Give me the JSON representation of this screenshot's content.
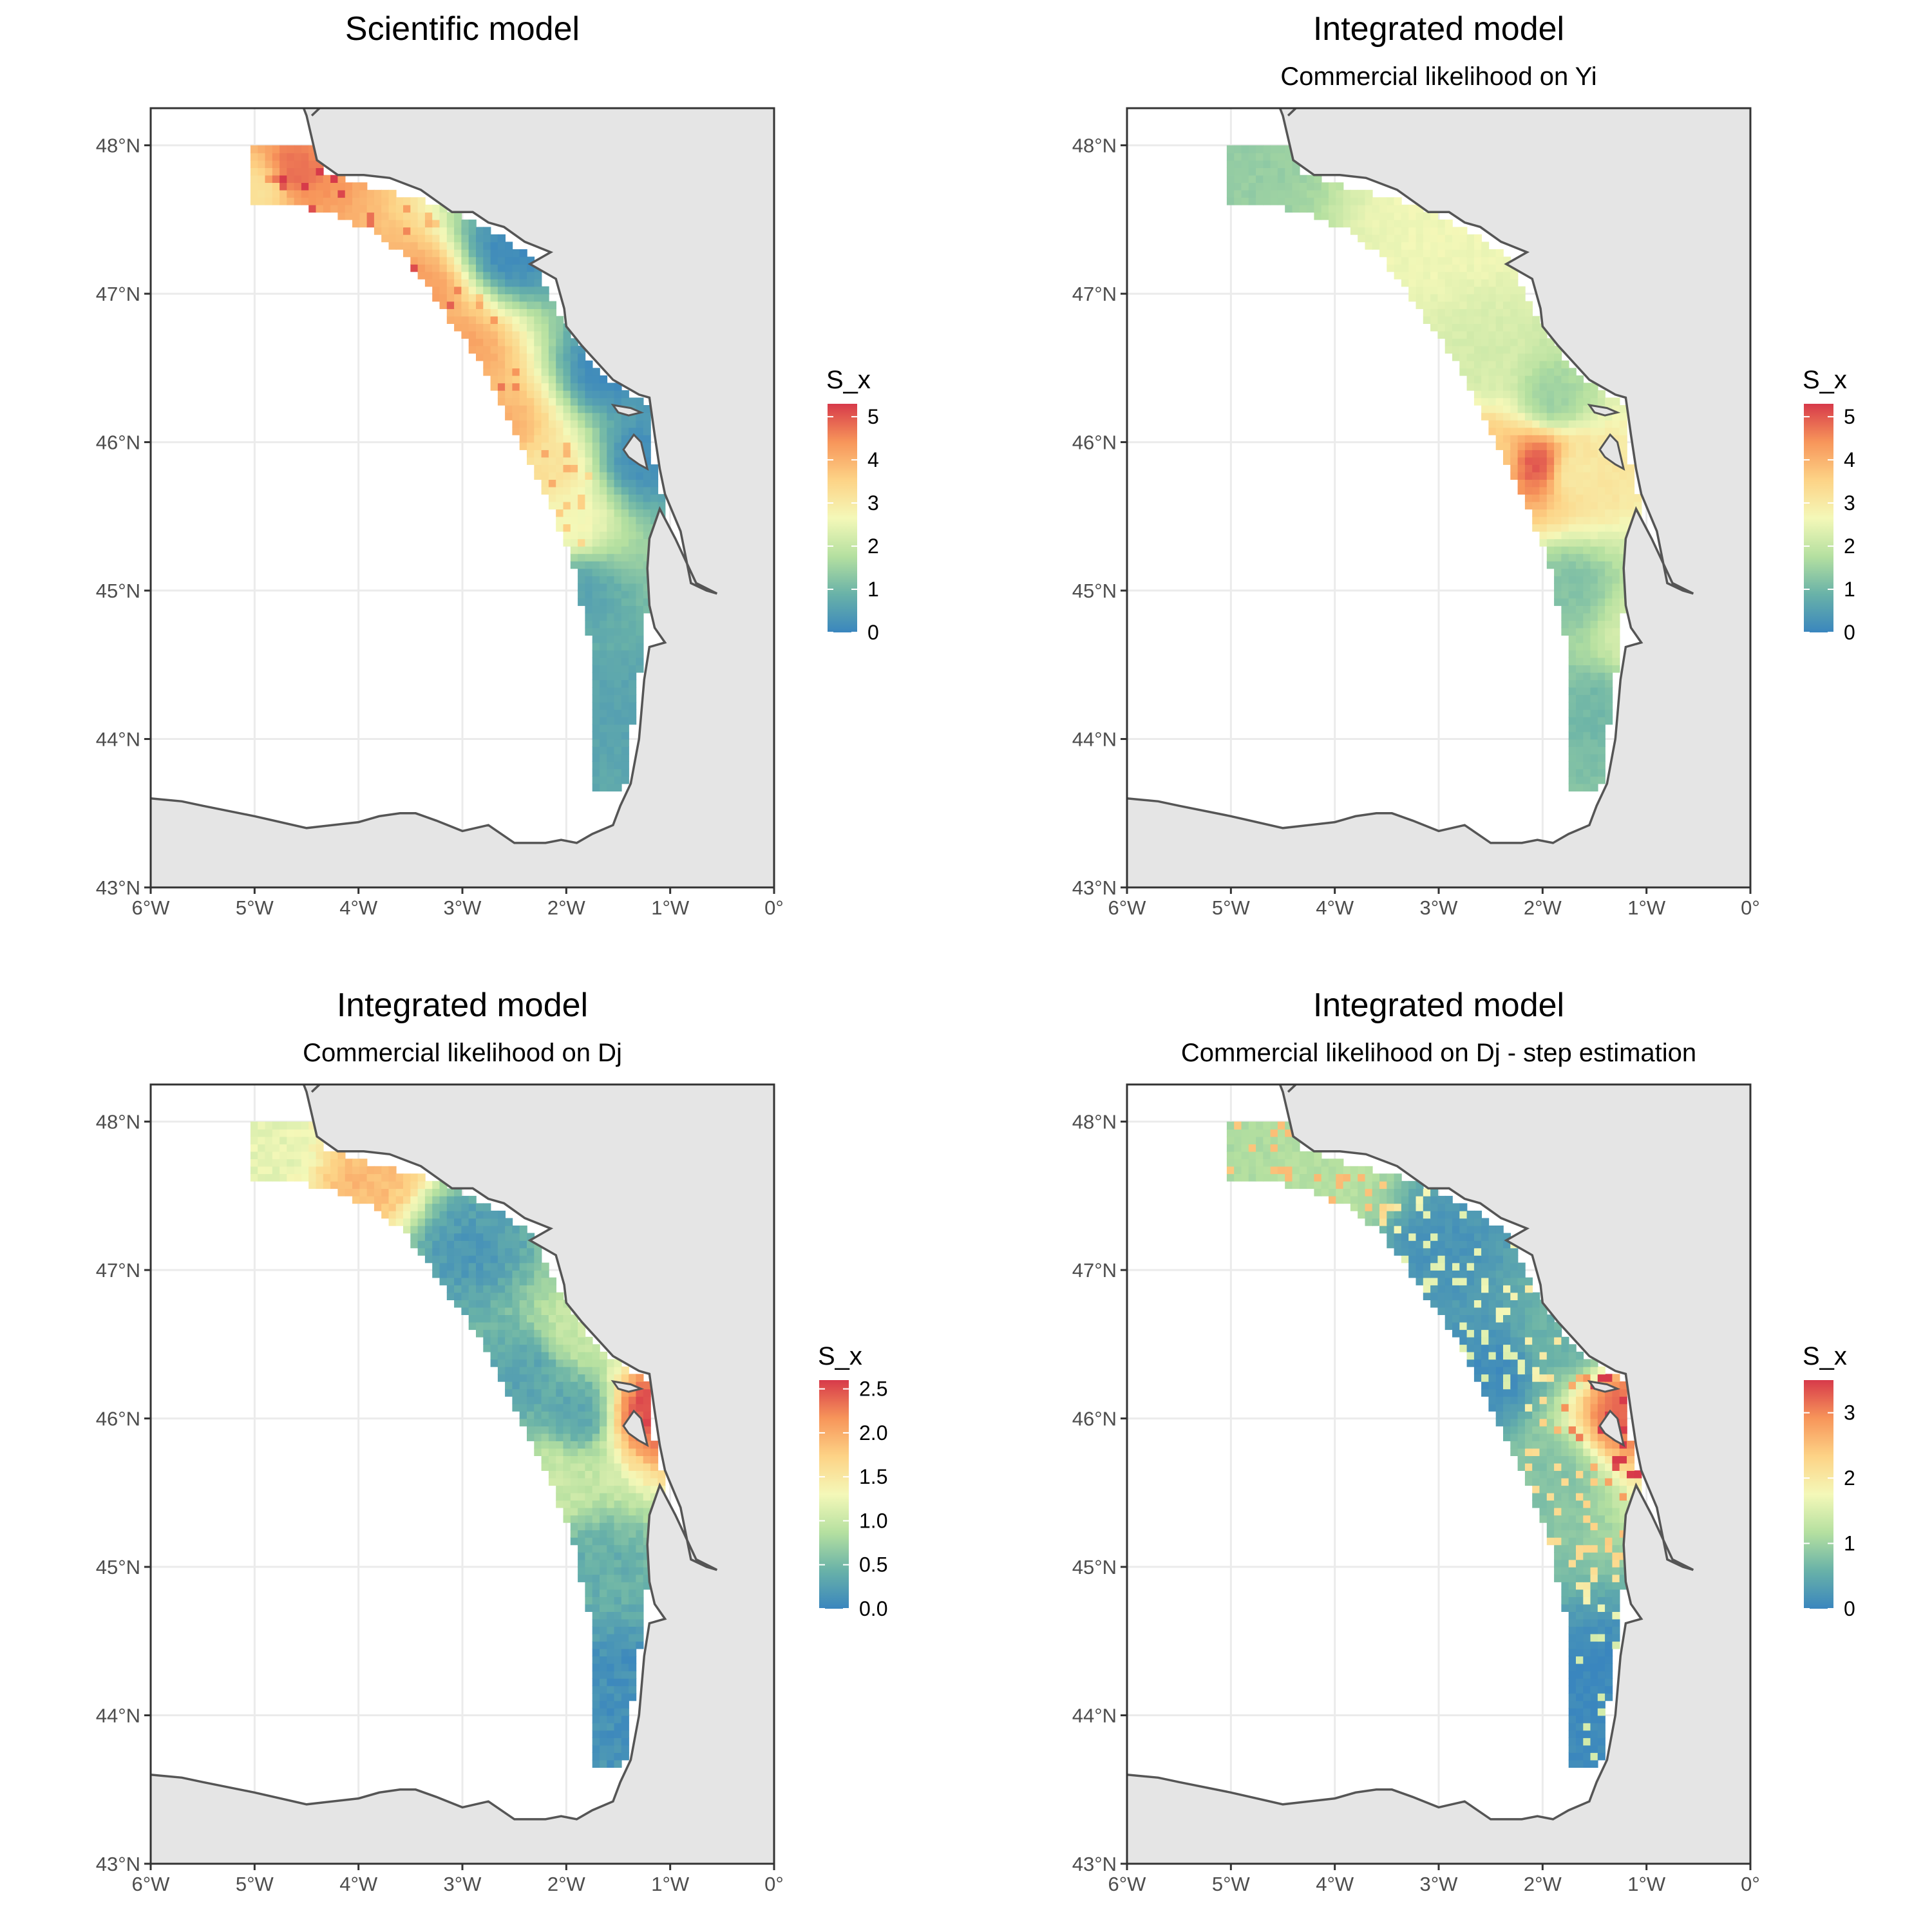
{
  "figure": {
    "panels": [
      {
        "title": "Scientific model",
        "subtitle": "",
        "legend": {
          "title": "S_x",
          "ticks": [
            "5",
            "4",
            "3",
            "2",
            "1",
            "0"
          ],
          "tick_values": [
            5,
            4,
            3,
            2,
            1,
            0
          ],
          "max": 5.3
        }
      },
      {
        "title": "Integrated model",
        "subtitle": "Commercial likelihood on Yi",
        "legend": {
          "title": "S_x",
          "ticks": [
            "5",
            "4",
            "3",
            "2",
            "1",
            "0"
          ],
          "tick_values": [
            5,
            4,
            3,
            2,
            1,
            0
          ],
          "max": 5.3
        }
      },
      {
        "title": "Integrated model",
        "subtitle": "Commercial likelihood on Dj",
        "legend": {
          "title": "S_x",
          "ticks": [
            "2.5",
            "2.0",
            "1.5",
            "1.0",
            "0.5",
            "0.0"
          ],
          "tick_values": [
            2.5,
            2.0,
            1.5,
            1.0,
            0.5,
            0.0
          ],
          "max": 2.6
        }
      },
      {
        "title": "Integrated model",
        "subtitle": "Commercial likelihood on Dj - step estimation",
        "legend": {
          "title": "S_x",
          "ticks": [
            "3",
            "2",
            "1",
            "0"
          ],
          "tick_values": [
            3,
            2,
            1,
            0
          ],
          "max": 3.5
        }
      }
    ],
    "x_ticks": [
      "6°W",
      "5°W",
      "4°W",
      "3°W",
      "2°W",
      "1°W",
      "0°"
    ],
    "x_tick_values": [
      -6,
      -5,
      -4,
      -3,
      -2,
      -1,
      0
    ],
    "y_ticks": [
      "48°N",
      "47°N",
      "46°N",
      "45°N",
      "44°N",
      "43°N"
    ],
    "y_tick_values": [
      48,
      47,
      46,
      45,
      44,
      43
    ],
    "colors": {
      "land": "#e5e5e5",
      "coast": "#555555",
      "grid": "#ebebeb",
      "scale": [
        "#3a86be",
        "#69b2a8",
        "#b5e0a0",
        "#f4f8b8",
        "#fdd386",
        "#f7955a",
        "#d73a4a"
      ]
    }
  },
  "chart_data": [
    {
      "type": "heatmap",
      "title": "Scientific model",
      "xlim": [
        -6,
        0
      ],
      "ylim": [
        43,
        48.25
      ],
      "color_range": [
        0,
        5.3
      ],
      "pattern": [
        {
          "lon": -4.65,
          "lat": 47.82,
          "value": 4.8
        },
        {
          "lon": -4.9,
          "lat": 47.72,
          "value": 3.2
        },
        {
          "lon": -3.45,
          "lat": 47.0,
          "value": 4.3
        },
        {
          "lon": -3.0,
          "lat": 46.6,
          "value": 4.2
        },
        {
          "lon": -2.6,
          "lat": 46.1,
          "value": 4.0
        },
        {
          "lon": -2.2,
          "lat": 45.8,
          "value": 3.2
        },
        {
          "lon": -2.0,
          "lat": 45.45,
          "value": 2.7
        },
        {
          "lon": -1.9,
          "lat": 45.0,
          "value": 0.6
        },
        {
          "lon": -1.5,
          "lat": 44.2,
          "value": 0.6
        },
        {
          "lon": -1.6,
          "lat": 46.5,
          "value": 0.1
        },
        {
          "lon": -2.5,
          "lat": 47.3,
          "value": 0.1
        },
        {
          "lon": -1.25,
          "lat": 45.9,
          "value": 0.2
        }
      ]
    },
    {
      "type": "heatmap",
      "title": "Integrated model",
      "subtitle": "Commercial likelihood on Yi",
      "xlim": [
        -6,
        0
      ],
      "ylim": [
        43,
        48.25
      ],
      "color_range": [
        0,
        5.3
      ],
      "pattern": [
        {
          "lon": -2.05,
          "lat": 45.85,
          "value": 5.0
        },
        {
          "lon": -2.45,
          "lat": 45.9,
          "value": 3.6
        },
        {
          "lon": -1.7,
          "lat": 45.8,
          "value": 3.0
        },
        {
          "lon": -2.95,
          "lat": 47.45,
          "value": 2.6
        },
        {
          "lon": -2.6,
          "lat": 46.55,
          "value": 2.2
        },
        {
          "lon": -1.9,
          "lat": 46.3,
          "value": 1.5
        },
        {
          "lon": -1.75,
          "lat": 45.0,
          "value": 1.2
        },
        {
          "lon": -1.45,
          "lat": 44.2,
          "value": 1.0
        },
        {
          "lon": -4.9,
          "lat": 47.8,
          "value": 1.4
        },
        {
          "lon": -1.1,
          "lat": 44.7,
          "value": 2.2
        }
      ]
    },
    {
      "type": "heatmap",
      "title": "Integrated model",
      "subtitle": "Commercial likelihood on Dj",
      "xlim": [
        -6,
        0
      ],
      "ylim": [
        43,
        48.25
      ],
      "color_range": [
        0,
        2.6
      ],
      "pattern": [
        {
          "lon": -3.95,
          "lat": 47.6,
          "value": 1.9
        },
        {
          "lon": -4.8,
          "lat": 47.8,
          "value": 1.2
        },
        {
          "lon": -1.2,
          "lat": 46.05,
          "value": 2.5
        },
        {
          "lon": -2.95,
          "lat": 47.15,
          "value": 0.2
        },
        {
          "lon": -2.4,
          "lat": 46.3,
          "value": 0.3
        },
        {
          "lon": -1.9,
          "lat": 46.05,
          "value": 0.3
        },
        {
          "lon": -2.1,
          "lat": 45.6,
          "value": 1.0
        },
        {
          "lon": -1.7,
          "lat": 45.0,
          "value": 0.4
        },
        {
          "lon": -1.5,
          "lat": 44.2,
          "value": 0.1
        },
        {
          "lon": -1.85,
          "lat": 46.6,
          "value": 1.0
        }
      ]
    },
    {
      "type": "heatmap",
      "title": "Integrated model",
      "subtitle": "Commercial likelihood on Dj - step estimation",
      "xlim": [
        -6,
        0
      ],
      "ylim": [
        43,
        48.25
      ],
      "color_range": [
        0,
        3.5
      ],
      "pattern": [
        {
          "lon": -1.2,
          "lat": 46.05,
          "value": 3.2
        },
        {
          "lon": -4.0,
          "lat": 47.55,
          "value": 1.2
        },
        {
          "lon": -3.0,
          "lat": 47.15,
          "value": 0.2
        },
        {
          "lon": -2.5,
          "lat": 46.3,
          "value": 0.1
        },
        {
          "lon": -1.9,
          "lat": 45.6,
          "value": 0.8
        },
        {
          "lon": -2.6,
          "lat": 45.3,
          "value": 0.7
        },
        {
          "lon": -1.5,
          "lat": 44.2,
          "value": 0.05
        },
        {
          "lon": -1.75,
          "lat": 46.55,
          "value": 0.6
        }
      ]
    }
  ]
}
